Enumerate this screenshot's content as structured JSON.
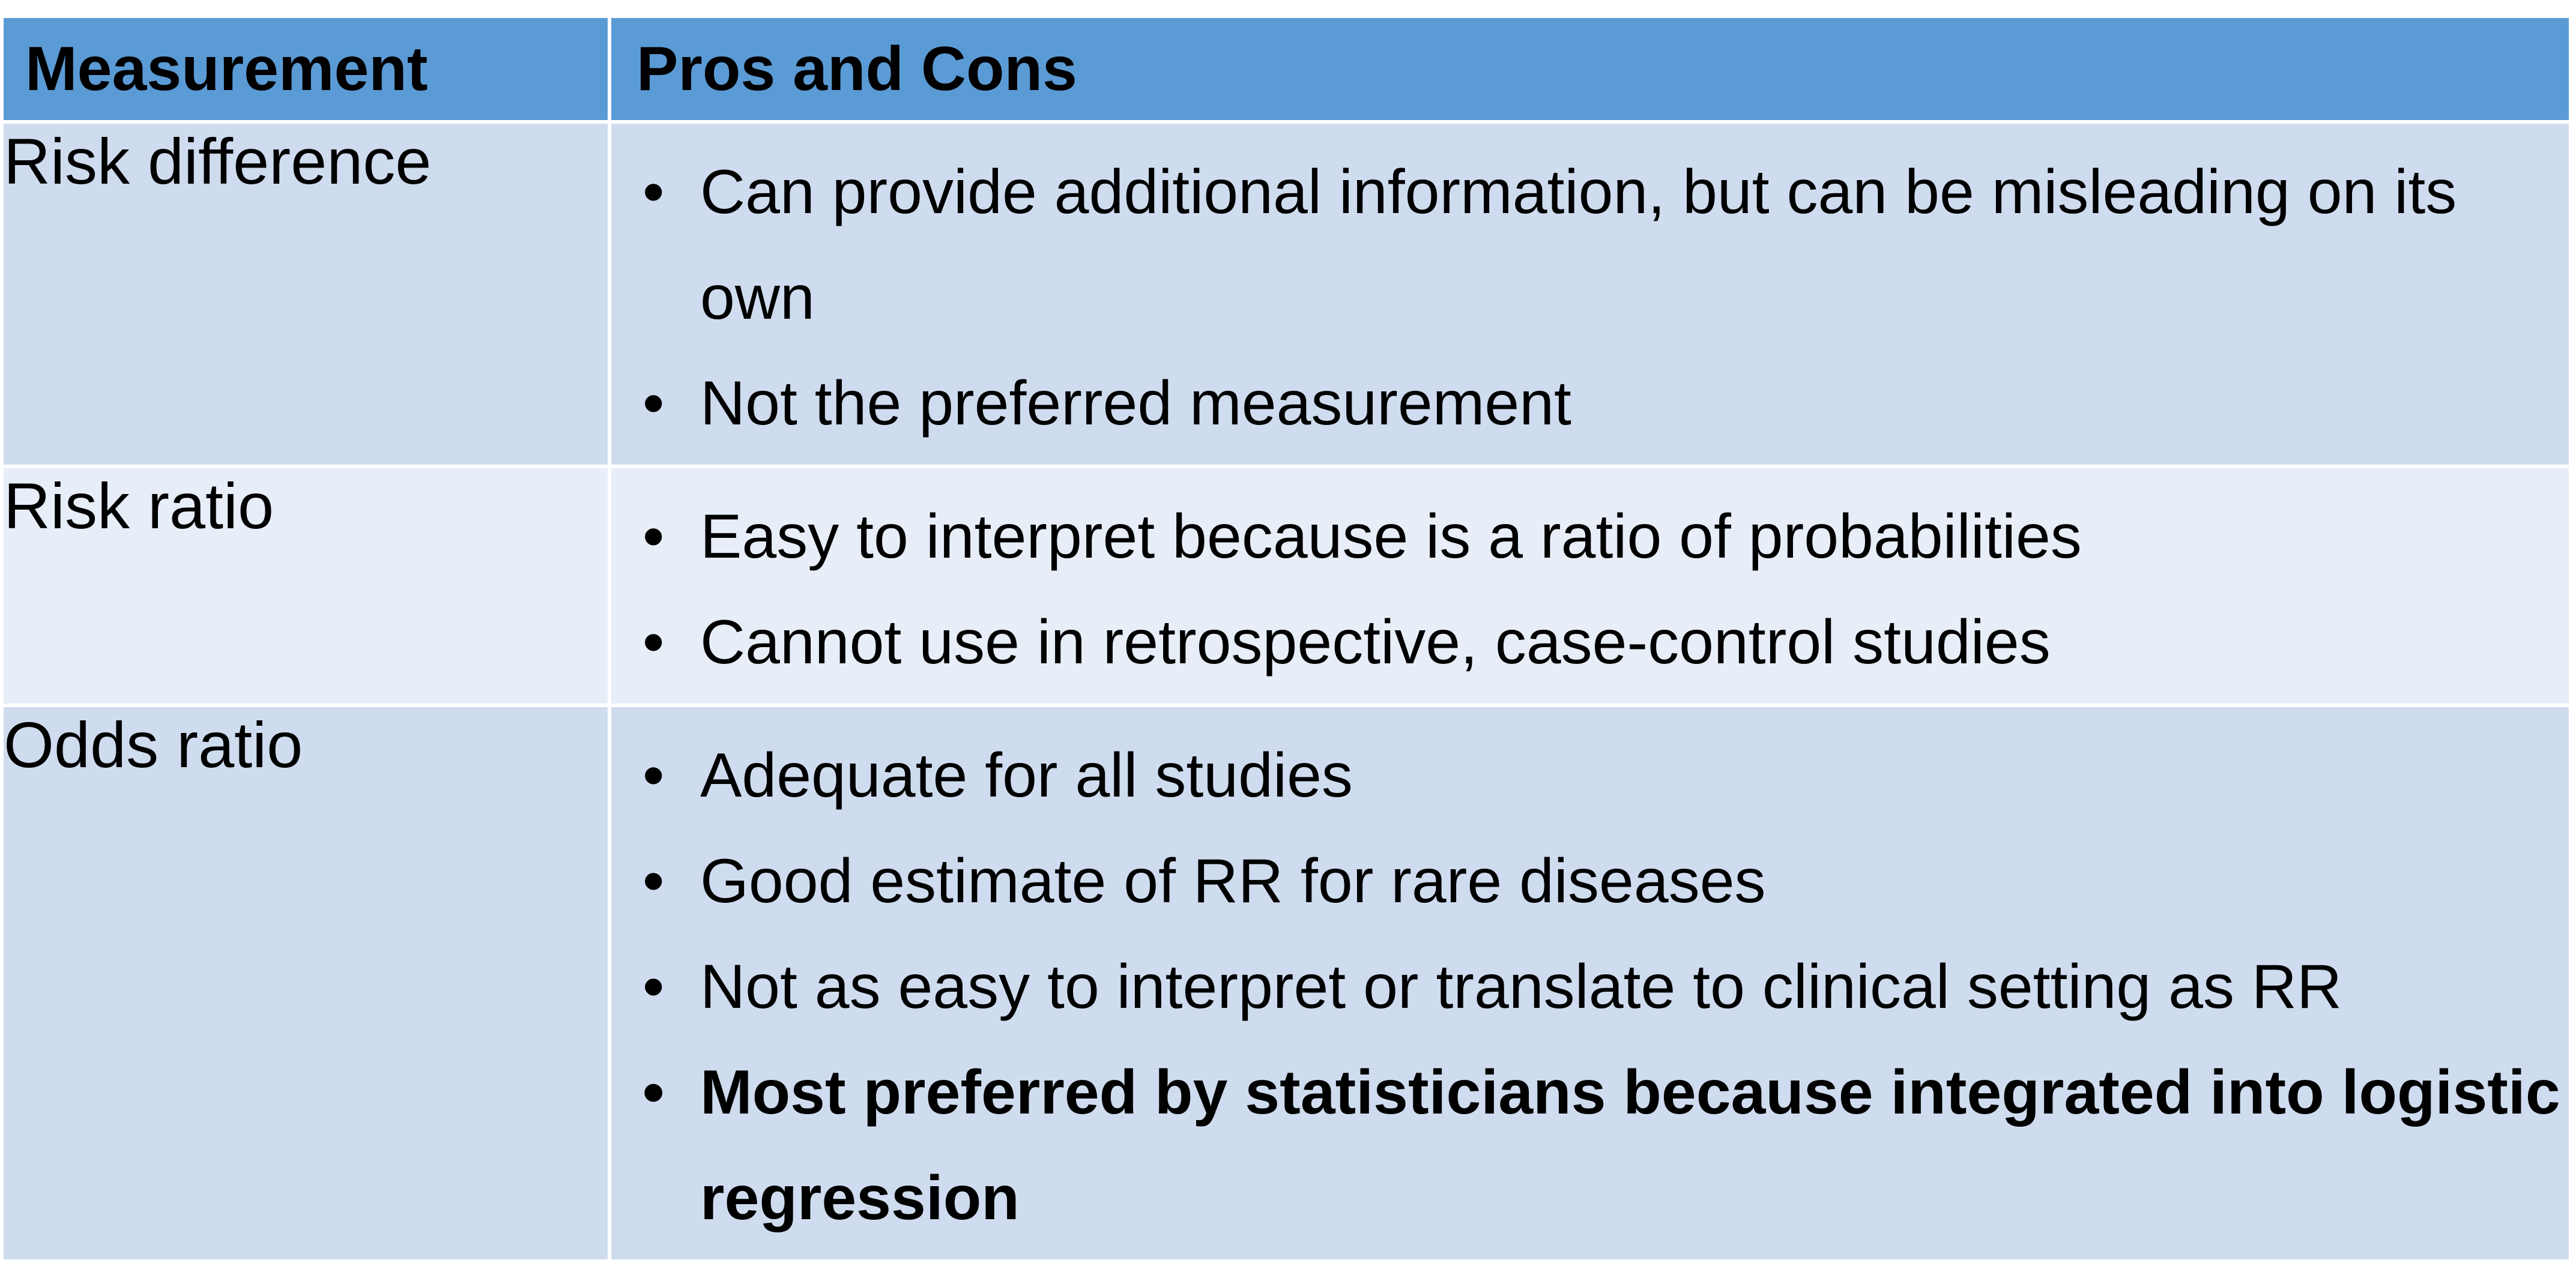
{
  "table": {
    "header": {
      "col1": "Measurement",
      "col2": "Pros and Cons"
    },
    "rows": [
      {
        "measurement": "Risk difference",
        "points": [
          "Can provide additional information, but can be misleading on its own",
          "Not the preferred measurement"
        ]
      },
      {
        "measurement": "Risk ratio",
        "points": [
          "Easy to interpret because is a ratio of probabilities",
          "Cannot use in retrospective, case-control studies"
        ]
      },
      {
        "measurement": "Odds ratio",
        "points": [
          "Adequate for all studies",
          "Good estimate of RR for rare diseases",
          "Not as easy to interpret or translate to clinical setting as RR",
          "Most preferred by statisticians because integrated into logistic regression"
        ]
      }
    ],
    "bullet_glyph": "•",
    "colors": {
      "header_bg": "#5b9bd5",
      "row_dark_bg": "#cfdcef",
      "row_light_bg": "#e8eef8"
    }
  }
}
